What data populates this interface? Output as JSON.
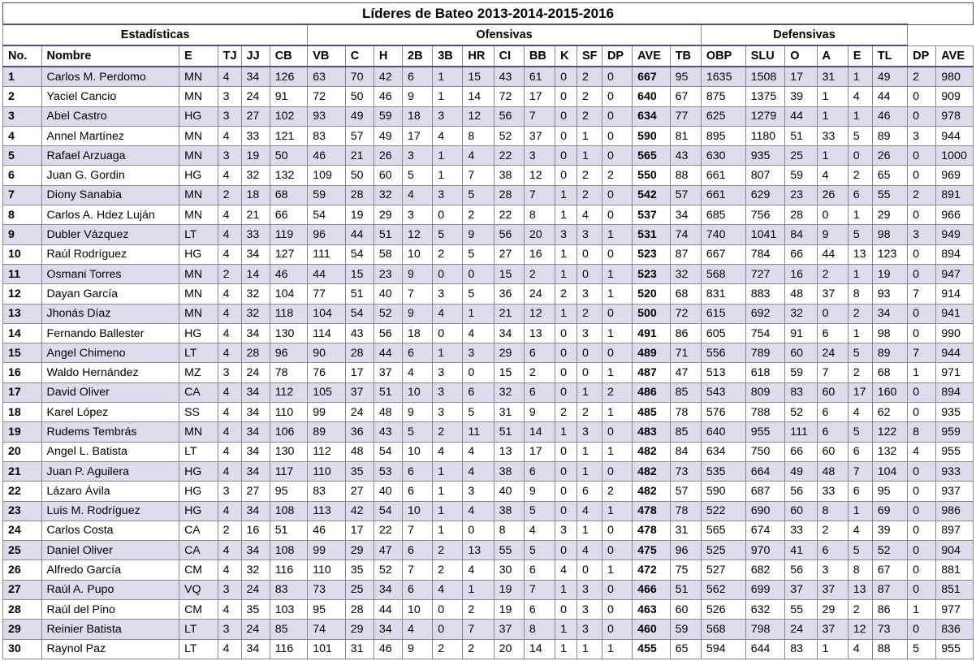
{
  "title": "Líderes de Bateo 2013-2014-2015-2016",
  "groups": [
    {
      "label": "Estadísticas",
      "span": 6
    },
    {
      "label": "Ofensivas",
      "span": 13
    },
    {
      "label": "Defensivas",
      "span": 6
    }
  ],
  "columns": [
    "No.",
    "Nombre",
    "E",
    "TJ",
    "JJ",
    "CB",
    "VB",
    "C",
    "H",
    "2B",
    "3B",
    "HR",
    "CI",
    "BB",
    "K",
    "SF",
    "DP",
    "AVE",
    "TB",
    "OBP",
    "SLU",
    "O",
    "A",
    "E",
    "TL",
    "DP",
    "AVE"
  ],
  "rows": [
    [
      "1",
      "Carlos M. Perdomo",
      "MN",
      "4",
      "34",
      "126",
      "63",
      "70",
      "42",
      "6",
      "1",
      "15",
      "43",
      "61",
      "0",
      "2",
      "0",
      "667",
      "95",
      "1635",
      "1508",
      "17",
      "31",
      "1",
      "49",
      "2",
      "980"
    ],
    [
      "2",
      "Yaciel Cancio",
      "MN",
      "3",
      "24",
      "91",
      "72",
      "50",
      "46",
      "9",
      "1",
      "14",
      "72",
      "17",
      "0",
      "2",
      "0",
      "640",
      "67",
      "875",
      "1375",
      "39",
      "1",
      "4",
      "44",
      "0",
      "909"
    ],
    [
      "3",
      "Abel Castro",
      "HG",
      "3",
      "27",
      "102",
      "93",
      "49",
      "59",
      "18",
      "3",
      "12",
      "56",
      "7",
      "0",
      "2",
      "0",
      "634",
      "77",
      "625",
      "1279",
      "44",
      "1",
      "1",
      "46",
      "0",
      "978"
    ],
    [
      "4",
      "Annel Martínez",
      "MN",
      "4",
      "33",
      "121",
      "83",
      "57",
      "49",
      "17",
      "4",
      "8",
      "52",
      "37",
      "0",
      "1",
      "0",
      "590",
      "81",
      "895",
      "1180",
      "51",
      "33",
      "5",
      "89",
      "3",
      "944"
    ],
    [
      "5",
      "Rafael Arzuaga",
      "MN",
      "3",
      "19",
      "50",
      "46",
      "21",
      "26",
      "3",
      "1",
      "4",
      "22",
      "3",
      "0",
      "1",
      "0",
      "565",
      "43",
      "630",
      "935",
      "25",
      "1",
      "0",
      "26",
      "0",
      "1000"
    ],
    [
      "6",
      "Juan G. Gordin",
      "HG",
      "4",
      "32",
      "132",
      "109",
      "50",
      "60",
      "5",
      "1",
      "7",
      "38",
      "12",
      "0",
      "2",
      "2",
      "550",
      "88",
      "661",
      "807",
      "59",
      "4",
      "2",
      "65",
      "0",
      "969"
    ],
    [
      "7",
      "Diony Sanabia",
      "MN",
      "2",
      "18",
      "68",
      "59",
      "28",
      "32",
      "4",
      "3",
      "5",
      "28",
      "7",
      "1",
      "2",
      "0",
      "542",
      "57",
      "661",
      "629",
      "23",
      "26",
      "6",
      "55",
      "2",
      "891"
    ],
    [
      "8",
      "Carlos A. Hdez Luján",
      "MN",
      "4",
      "21",
      "66",
      "54",
      "19",
      "29",
      "3",
      "0",
      "2",
      "22",
      "8",
      "1",
      "4",
      "0",
      "537",
      "34",
      "685",
      "756",
      "28",
      "0",
      "1",
      "29",
      "0",
      "966"
    ],
    [
      "9",
      "Dubler Vázquez",
      "LT",
      "4",
      "33",
      "119",
      "96",
      "44",
      "51",
      "12",
      "5",
      "9",
      "56",
      "20",
      "3",
      "3",
      "1",
      "531",
      "74",
      "740",
      "1041",
      "84",
      "9",
      "5",
      "98",
      "3",
      "949"
    ],
    [
      "10",
      "Raúl Rodríguez",
      "HG",
      "4",
      "34",
      "127",
      "111",
      "54",
      "58",
      "10",
      "2",
      "5",
      "27",
      "16",
      "1",
      "0",
      "0",
      "523",
      "87",
      "667",
      "784",
      "66",
      "44",
      "13",
      "123",
      "0",
      "894"
    ],
    [
      "11",
      "Osmani Torres",
      "MN",
      "2",
      "14",
      "46",
      "44",
      "15",
      "23",
      "9",
      "0",
      "0",
      "15",
      "2",
      "1",
      "0",
      "1",
      "523",
      "32",
      "568",
      "727",
      "16",
      "2",
      "1",
      "19",
      "0",
      "947"
    ],
    [
      "12",
      "Dayan García",
      "MN",
      "4",
      "32",
      "104",
      "77",
      "51",
      "40",
      "7",
      "3",
      "5",
      "36",
      "24",
      "2",
      "3",
      "1",
      "520",
      "68",
      "831",
      "883",
      "48",
      "37",
      "8",
      "93",
      "7",
      "914"
    ],
    [
      "13",
      "Jhonás Díaz",
      "MN",
      "4",
      "32",
      "118",
      "104",
      "54",
      "52",
      "9",
      "4",
      "1",
      "21",
      "12",
      "1",
      "2",
      "0",
      "500",
      "72",
      "615",
      "692",
      "32",
      "0",
      "2",
      "34",
      "0",
      "941"
    ],
    [
      "14",
      "Fernando Ballester",
      "HG",
      "4",
      "34",
      "130",
      "114",
      "43",
      "56",
      "18",
      "0",
      "4",
      "34",
      "13",
      "0",
      "3",
      "1",
      "491",
      "86",
      "605",
      "754",
      "91",
      "6",
      "1",
      "98",
      "0",
      "990"
    ],
    [
      "15",
      "Angel Chimeno",
      "LT",
      "4",
      "28",
      "96",
      "90",
      "28",
      "44",
      "6",
      "1",
      "3",
      "29",
      "6",
      "0",
      "0",
      "0",
      "489",
      "71",
      "556",
      "789",
      "60",
      "24",
      "5",
      "89",
      "7",
      "944"
    ],
    [
      "16",
      "Waldo Hernández",
      "MZ",
      "3",
      "24",
      "78",
      "76",
      "17",
      "37",
      "4",
      "3",
      "0",
      "15",
      "2",
      "0",
      "0",
      "1",
      "487",
      "47",
      "513",
      "618",
      "59",
      "7",
      "2",
      "68",
      "1",
      "971"
    ],
    [
      "17",
      "David Oliver",
      "CA",
      "4",
      "34",
      "112",
      "105",
      "37",
      "51",
      "10",
      "3",
      "6",
      "32",
      "6",
      "0",
      "1",
      "2",
      "486",
      "85",
      "543",
      "809",
      "83",
      "60",
      "17",
      "160",
      "0",
      "894"
    ],
    [
      "18",
      "Karel López",
      "SS",
      "4",
      "34",
      "110",
      "99",
      "24",
      "48",
      "9",
      "3",
      "5",
      "31",
      "9",
      "2",
      "2",
      "1",
      "485",
      "78",
      "576",
      "788",
      "52",
      "6",
      "4",
      "62",
      "0",
      "935"
    ],
    [
      "19",
      "Rudems Tembrás",
      "MN",
      "4",
      "34",
      "106",
      "89",
      "36",
      "43",
      "5",
      "2",
      "11",
      "51",
      "14",
      "1",
      "3",
      "0",
      "483",
      "85",
      "640",
      "955",
      "111",
      "6",
      "5",
      "122",
      "8",
      "959"
    ],
    [
      "20",
      "Angel L. Batista",
      "LT",
      "4",
      "34",
      "130",
      "112",
      "48",
      "54",
      "10",
      "4",
      "4",
      "13",
      "17",
      "0",
      "1",
      "1",
      "482",
      "84",
      "634",
      "750",
      "66",
      "60",
      "6",
      "132",
      "4",
      "955"
    ],
    [
      "21",
      "Juan P. Aguilera",
      "HG",
      "4",
      "34",
      "117",
      "110",
      "35",
      "53",
      "6",
      "1",
      "4",
      "38",
      "6",
      "0",
      "1",
      "0",
      "482",
      "73",
      "535",
      "664",
      "49",
      "48",
      "7",
      "104",
      "0",
      "933"
    ],
    [
      "22",
      "Lázaro Ávila",
      "HG",
      "3",
      "27",
      "95",
      "83",
      "27",
      "40",
      "6",
      "1",
      "3",
      "40",
      "9",
      "0",
      "6",
      "2",
      "482",
      "57",
      "590",
      "687",
      "56",
      "33",
      "6",
      "95",
      "0",
      "937"
    ],
    [
      "23",
      "Luis M. Rodríguez",
      "HG",
      "4",
      "34",
      "108",
      "113",
      "42",
      "54",
      "10",
      "1",
      "4",
      "38",
      "5",
      "0",
      "4",
      "1",
      "478",
      "78",
      "522",
      "690",
      "60",
      "8",
      "1",
      "69",
      "0",
      "986"
    ],
    [
      "24",
      "Carlos Costa",
      "CA",
      "2",
      "16",
      "51",
      "46",
      "17",
      "22",
      "7",
      "1",
      "0",
      "8",
      "4",
      "3",
      "1",
      "0",
      "478",
      "31",
      "565",
      "674",
      "33",
      "2",
      "4",
      "39",
      "0",
      "897"
    ],
    [
      "25",
      "Daniel Oliver",
      "CA",
      "4",
      "34",
      "108",
      "99",
      "29",
      "47",
      "6",
      "2",
      "13",
      "55",
      "5",
      "0",
      "4",
      "0",
      "475",
      "96",
      "525",
      "970",
      "41",
      "6",
      "5",
      "52",
      "0",
      "904"
    ],
    [
      "26",
      "Alfredo García",
      "CM",
      "4",
      "32",
      "116",
      "110",
      "35",
      "52",
      "7",
      "2",
      "4",
      "30",
      "6",
      "4",
      "0",
      "1",
      "472",
      "75",
      "527",
      "682",
      "56",
      "3",
      "8",
      "67",
      "0",
      "881"
    ],
    [
      "27",
      "Raúl A. Pupo",
      "VQ",
      "3",
      "24",
      "83",
      "73",
      "25",
      "34",
      "6",
      "4",
      "1",
      "19",
      "7",
      "1",
      "3",
      "0",
      "466",
      "51",
      "562",
      "699",
      "37",
      "37",
      "13",
      "87",
      "0",
      "851"
    ],
    [
      "28",
      "Raúl del Pino",
      "CM",
      "4",
      "35",
      "103",
      "95",
      "28",
      "44",
      "10",
      "0",
      "2",
      "19",
      "6",
      "0",
      "3",
      "0",
      "463",
      "60",
      "526",
      "632",
      "55",
      "29",
      "2",
      "86",
      "1",
      "977"
    ],
    [
      "29",
      "Reinier Batista",
      "LT",
      "3",
      "24",
      "85",
      "74",
      "29",
      "34",
      "4",
      "0",
      "7",
      "37",
      "8",
      "1",
      "3",
      "0",
      "460",
      "59",
      "568",
      "798",
      "24",
      "37",
      "12",
      "73",
      "0",
      "836"
    ],
    [
      "30",
      "Raynol Paz",
      "LT",
      "4",
      "34",
      "116",
      "101",
      "31",
      "46",
      "9",
      "2",
      "2",
      "20",
      "14",
      "1",
      "1",
      "1",
      "455",
      "65",
      "594",
      "644",
      "83",
      "1",
      "4",
      "88",
      "5",
      "955"
    ]
  ]
}
